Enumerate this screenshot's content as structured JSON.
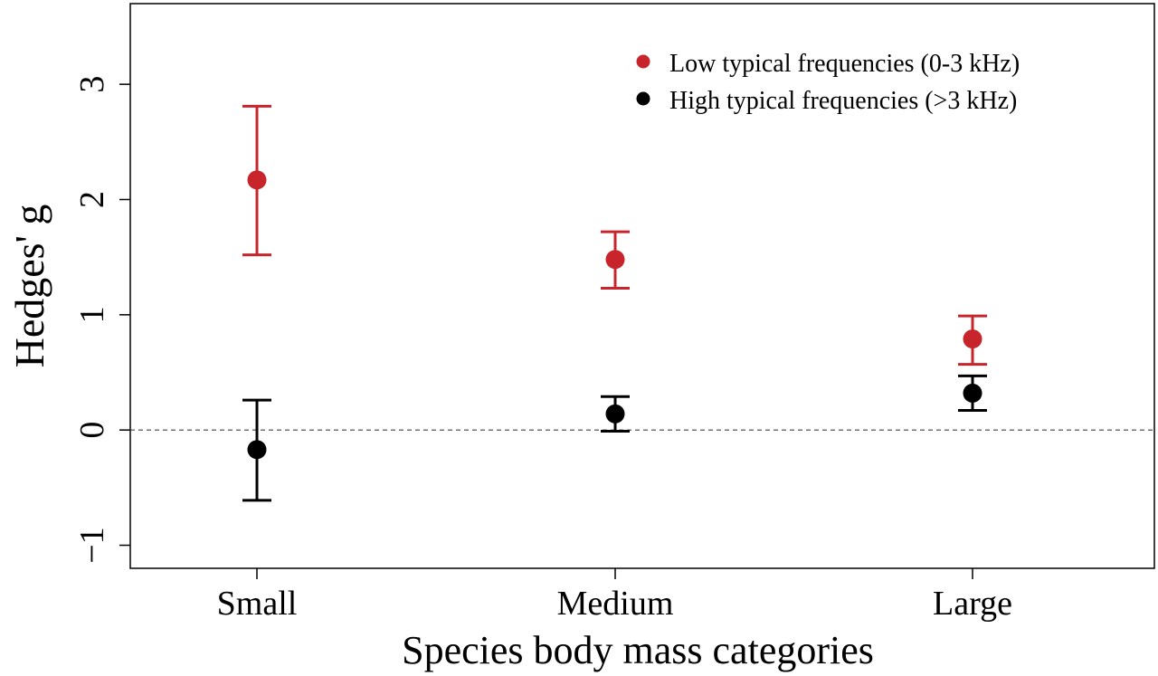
{
  "chart_data": {
    "type": "scatter",
    "title": "",
    "xlabel": "Species body mass categories",
    "ylabel": "Hedges' g",
    "categories": [
      "Small",
      "Medium",
      "Large"
    ],
    "ylim": [
      -1.2,
      3.7
    ],
    "yticks": [
      -1,
      0,
      1,
      2,
      3
    ],
    "ytick_labels": [
      "−1",
      "0",
      "1",
      "2",
      "3"
    ],
    "reference_line": 0,
    "grid": false,
    "legend_position": "top-right",
    "series": [
      {
        "name": "Low typical frequencies (0-3 kHz)",
        "color": "#c7252b",
        "values": [
          2.17,
          1.48,
          0.79
        ],
        "lower": [
          1.52,
          1.23,
          0.57
        ],
        "upper": [
          2.81,
          1.72,
          0.99
        ]
      },
      {
        "name": "High typical frequencies (>3 kHz)",
        "color": "#000000",
        "values": [
          -0.17,
          0.14,
          0.32
        ],
        "lower": [
          -0.61,
          -0.01,
          0.17
        ],
        "upper": [
          0.26,
          0.29,
          0.47
        ]
      }
    ]
  }
}
